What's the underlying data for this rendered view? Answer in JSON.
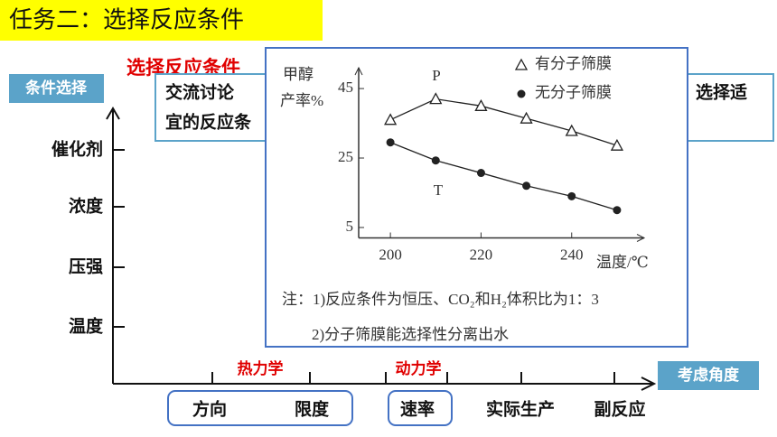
{
  "slide": {
    "title": "任务二：选择反应条件",
    "heading_red": "选择反应条件",
    "discussion": {
      "line1_left": "交流讨论",
      "line1_right": "选择适",
      "line2": "宜的反应条"
    },
    "y_axis": {
      "label": "条件选择",
      "items": [
        "催化剂",
        "浓度",
        "压强",
        "温度"
      ]
    },
    "x_axis": {
      "label": "考虑角度",
      "groups": [
        "热力学",
        "动力学"
      ],
      "items": [
        "方向",
        "限度",
        "速率",
        "实际生产",
        "副反应"
      ]
    }
  },
  "chart_data": {
    "type": "line",
    "y_label": [
      "甲醇",
      "产率%"
    ],
    "x_label": "温度/℃",
    "x": [
      200,
      210,
      220,
      230,
      240,
      250
    ],
    "series": [
      {
        "name": "有分子筛膜",
        "marker": "triangle",
        "color": "#222222",
        "values": [
          36,
          42,
          40,
          36.4,
          32.8,
          28.6
        ]
      },
      {
        "name": "无分子筛膜",
        "marker": "circle",
        "color": "#222222",
        "values": [
          29.5,
          24.3,
          20.7,
          17,
          14,
          10
        ]
      }
    ],
    "xlim": [
      193,
      256
    ],
    "ylim": [
      2,
      51
    ],
    "xticks": [
      200,
      220,
      240
    ],
    "yticks": [
      5,
      25,
      45
    ],
    "annotations": [
      "P",
      "T"
    ],
    "notes": [
      "注：1)反应条件为恒压、CO₂和H₂体积比为1：3",
      "2)分子筛膜能选择性分离出水"
    ]
  }
}
